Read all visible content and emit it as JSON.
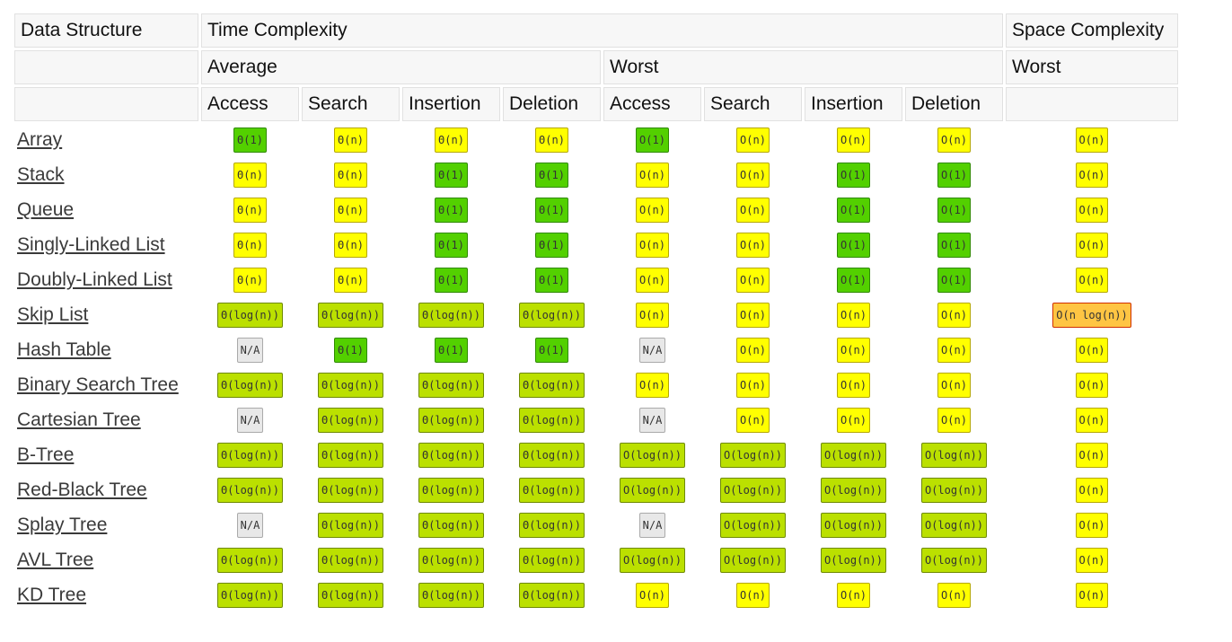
{
  "headers": {
    "data_structure": "Data Structure",
    "time_complexity": "Time Complexity",
    "space_complexity": "Space Complexity",
    "average": "Average",
    "worst_time": "Worst",
    "worst_space": "Worst",
    "ops": [
      "Access",
      "Search",
      "Insertion",
      "Deletion",
      "Access",
      "Search",
      "Insertion",
      "Deletion"
    ]
  },
  "colors": {
    "green": "#53d000",
    "lime": "#bbe000",
    "yellow": "#ffff00",
    "orange": "#ffc543",
    "gray": "#e8e8e8"
  },
  "rows": [
    {
      "name": "Array",
      "cells": [
        [
          "Θ(1)",
          "green"
        ],
        [
          "Θ(n)",
          "yellow"
        ],
        [
          "Θ(n)",
          "yellow"
        ],
        [
          "Θ(n)",
          "yellow"
        ],
        [
          "O(1)",
          "green"
        ],
        [
          "O(n)",
          "yellow"
        ],
        [
          "O(n)",
          "yellow"
        ],
        [
          "O(n)",
          "yellow"
        ],
        [
          "O(n)",
          "yellow"
        ]
      ]
    },
    {
      "name": "Stack",
      "cells": [
        [
          "Θ(n)",
          "yellow"
        ],
        [
          "Θ(n)",
          "yellow"
        ],
        [
          "Θ(1)",
          "green"
        ],
        [
          "Θ(1)",
          "green"
        ],
        [
          "O(n)",
          "yellow"
        ],
        [
          "O(n)",
          "yellow"
        ],
        [
          "O(1)",
          "green"
        ],
        [
          "O(1)",
          "green"
        ],
        [
          "O(n)",
          "yellow"
        ]
      ]
    },
    {
      "name": "Queue",
      "cells": [
        [
          "Θ(n)",
          "yellow"
        ],
        [
          "Θ(n)",
          "yellow"
        ],
        [
          "Θ(1)",
          "green"
        ],
        [
          "Θ(1)",
          "green"
        ],
        [
          "O(n)",
          "yellow"
        ],
        [
          "O(n)",
          "yellow"
        ],
        [
          "O(1)",
          "green"
        ],
        [
          "O(1)",
          "green"
        ],
        [
          "O(n)",
          "yellow"
        ]
      ]
    },
    {
      "name": "Singly-Linked List",
      "cells": [
        [
          "Θ(n)",
          "yellow"
        ],
        [
          "Θ(n)",
          "yellow"
        ],
        [
          "Θ(1)",
          "green"
        ],
        [
          "Θ(1)",
          "green"
        ],
        [
          "O(n)",
          "yellow"
        ],
        [
          "O(n)",
          "yellow"
        ],
        [
          "O(1)",
          "green"
        ],
        [
          "O(1)",
          "green"
        ],
        [
          "O(n)",
          "yellow"
        ]
      ]
    },
    {
      "name": "Doubly-Linked List",
      "cells": [
        [
          "Θ(n)",
          "yellow"
        ],
        [
          "Θ(n)",
          "yellow"
        ],
        [
          "Θ(1)",
          "green"
        ],
        [
          "Θ(1)",
          "green"
        ],
        [
          "O(n)",
          "yellow"
        ],
        [
          "O(n)",
          "yellow"
        ],
        [
          "O(1)",
          "green"
        ],
        [
          "O(1)",
          "green"
        ],
        [
          "O(n)",
          "yellow"
        ]
      ]
    },
    {
      "name": "Skip List",
      "cells": [
        [
          "Θ(log(n))",
          "lime"
        ],
        [
          "Θ(log(n))",
          "lime"
        ],
        [
          "Θ(log(n))",
          "lime"
        ],
        [
          "Θ(log(n))",
          "lime"
        ],
        [
          "O(n)",
          "yellow"
        ],
        [
          "O(n)",
          "yellow"
        ],
        [
          "O(n)",
          "yellow"
        ],
        [
          "O(n)",
          "yellow"
        ],
        [
          "O(n log(n))",
          "orange"
        ]
      ]
    },
    {
      "name": "Hash Table",
      "cells": [
        [
          "N/A",
          "gray"
        ],
        [
          "Θ(1)",
          "green"
        ],
        [
          "Θ(1)",
          "green"
        ],
        [
          "Θ(1)",
          "green"
        ],
        [
          "N/A",
          "gray"
        ],
        [
          "O(n)",
          "yellow"
        ],
        [
          "O(n)",
          "yellow"
        ],
        [
          "O(n)",
          "yellow"
        ],
        [
          "O(n)",
          "yellow"
        ]
      ]
    },
    {
      "name": "Binary Search Tree",
      "cells": [
        [
          "Θ(log(n))",
          "lime"
        ],
        [
          "Θ(log(n))",
          "lime"
        ],
        [
          "Θ(log(n))",
          "lime"
        ],
        [
          "Θ(log(n))",
          "lime"
        ],
        [
          "O(n)",
          "yellow"
        ],
        [
          "O(n)",
          "yellow"
        ],
        [
          "O(n)",
          "yellow"
        ],
        [
          "O(n)",
          "yellow"
        ],
        [
          "O(n)",
          "yellow"
        ]
      ]
    },
    {
      "name": "Cartesian Tree",
      "cells": [
        [
          "N/A",
          "gray"
        ],
        [
          "Θ(log(n))",
          "lime"
        ],
        [
          "Θ(log(n))",
          "lime"
        ],
        [
          "Θ(log(n))",
          "lime"
        ],
        [
          "N/A",
          "gray"
        ],
        [
          "O(n)",
          "yellow"
        ],
        [
          "O(n)",
          "yellow"
        ],
        [
          "O(n)",
          "yellow"
        ],
        [
          "O(n)",
          "yellow"
        ]
      ]
    },
    {
      "name": "B-Tree",
      "cells": [
        [
          "Θ(log(n))",
          "lime"
        ],
        [
          "Θ(log(n))",
          "lime"
        ],
        [
          "Θ(log(n))",
          "lime"
        ],
        [
          "Θ(log(n))",
          "lime"
        ],
        [
          "O(log(n))",
          "lime"
        ],
        [
          "O(log(n))",
          "lime"
        ],
        [
          "O(log(n))",
          "lime"
        ],
        [
          "O(log(n))",
          "lime"
        ],
        [
          "O(n)",
          "yellow"
        ]
      ]
    },
    {
      "name": "Red-Black Tree",
      "cells": [
        [
          "Θ(log(n))",
          "lime"
        ],
        [
          "Θ(log(n))",
          "lime"
        ],
        [
          "Θ(log(n))",
          "lime"
        ],
        [
          "Θ(log(n))",
          "lime"
        ],
        [
          "O(log(n))",
          "lime"
        ],
        [
          "O(log(n))",
          "lime"
        ],
        [
          "O(log(n))",
          "lime"
        ],
        [
          "O(log(n))",
          "lime"
        ],
        [
          "O(n)",
          "yellow"
        ]
      ]
    },
    {
      "name": "Splay Tree",
      "cells": [
        [
          "N/A",
          "gray"
        ],
        [
          "Θ(log(n))",
          "lime"
        ],
        [
          "Θ(log(n))",
          "lime"
        ],
        [
          "Θ(log(n))",
          "lime"
        ],
        [
          "N/A",
          "gray"
        ],
        [
          "O(log(n))",
          "lime"
        ],
        [
          "O(log(n))",
          "lime"
        ],
        [
          "O(log(n))",
          "lime"
        ],
        [
          "O(n)",
          "yellow"
        ]
      ]
    },
    {
      "name": "AVL Tree",
      "cells": [
        [
          "Θ(log(n))",
          "lime"
        ],
        [
          "Θ(log(n))",
          "lime"
        ],
        [
          "Θ(log(n))",
          "lime"
        ],
        [
          "Θ(log(n))",
          "lime"
        ],
        [
          "O(log(n))",
          "lime"
        ],
        [
          "O(log(n))",
          "lime"
        ],
        [
          "O(log(n))",
          "lime"
        ],
        [
          "O(log(n))",
          "lime"
        ],
        [
          "O(n)",
          "yellow"
        ]
      ]
    },
    {
      "name": "KD Tree",
      "cells": [
        [
          "Θ(log(n))",
          "lime"
        ],
        [
          "Θ(log(n))",
          "lime"
        ],
        [
          "Θ(log(n))",
          "lime"
        ],
        [
          "Θ(log(n))",
          "lime"
        ],
        [
          "O(n)",
          "yellow"
        ],
        [
          "O(n)",
          "yellow"
        ],
        [
          "O(n)",
          "yellow"
        ],
        [
          "O(n)",
          "yellow"
        ],
        [
          "O(n)",
          "yellow"
        ]
      ]
    }
  ]
}
